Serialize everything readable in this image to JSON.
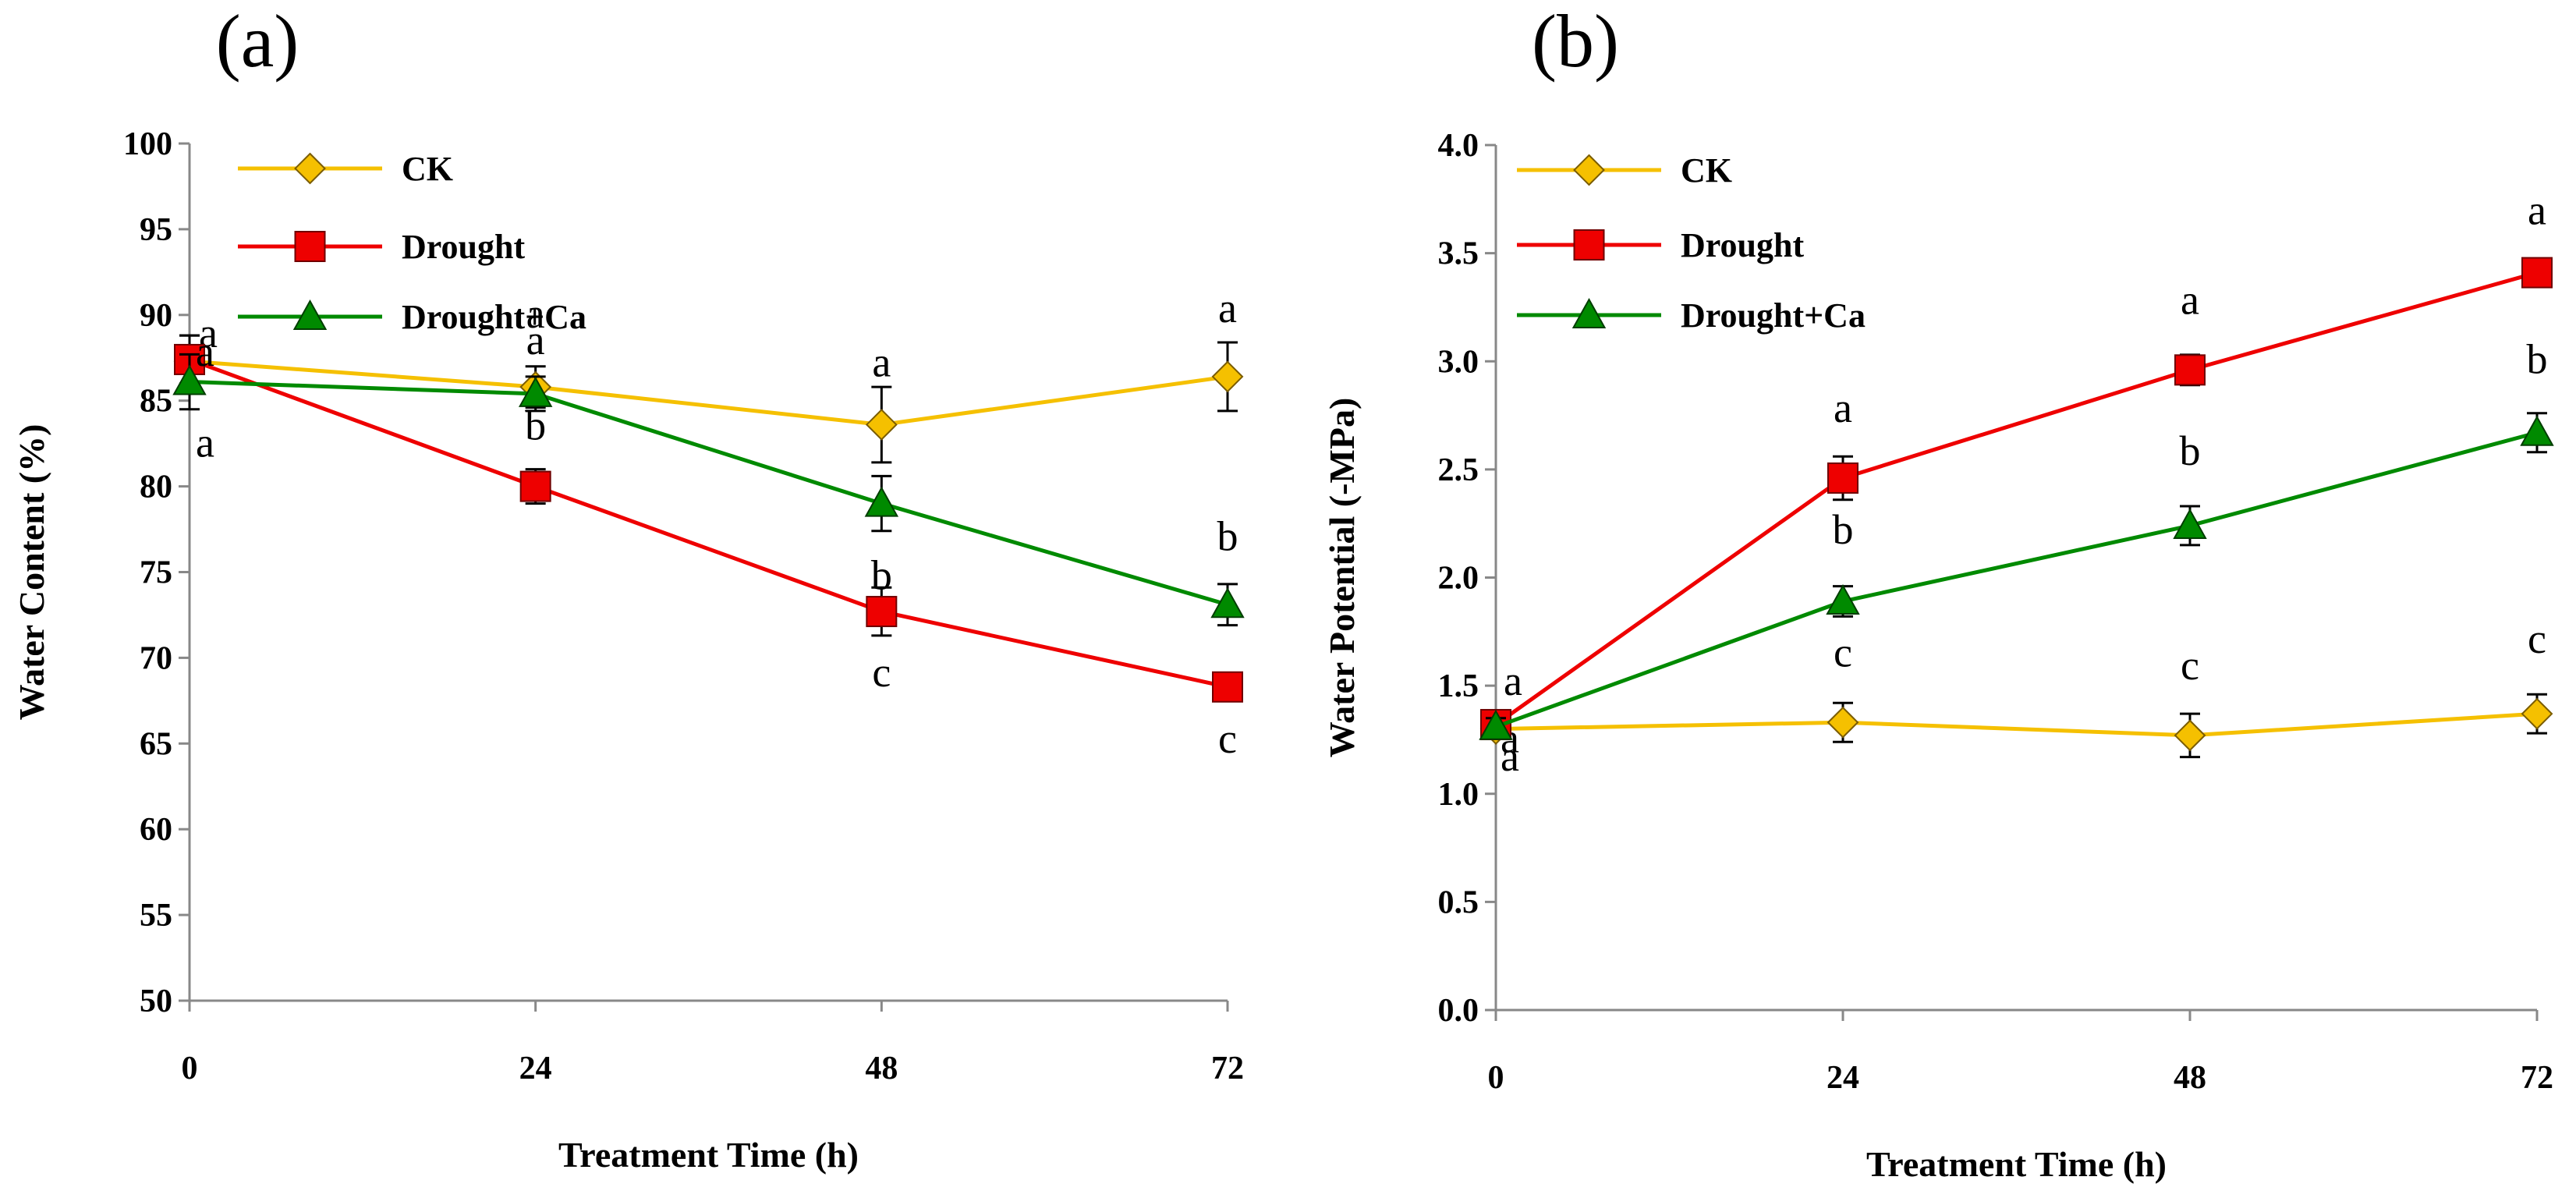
{
  "chart_data": [
    {
      "type": "line",
      "panel_label": "(a)",
      "xlabel": "Treatment Time (h)",
      "ylabel": "Water  Content (%)",
      "x": [
        0,
        24,
        48,
        72
      ],
      "x_tick_labels": [
        "0",
        "24",
        "48",
        "72"
      ],
      "ylim": [
        50,
        100
      ],
      "y_ticks": [
        50,
        55,
        60,
        65,
        70,
        75,
        80,
        85,
        90,
        95,
        100
      ],
      "y_tick_labels": [
        "50",
        "55",
        "60",
        "65",
        "70",
        "75",
        "80",
        "85",
        "90",
        "95",
        "100"
      ],
      "grid": false,
      "legend_position": "top-left",
      "series": [
        {
          "name": "CK",
          "color": "#F5C000",
          "marker": "diamond",
          "values": [
            87.3,
            85.8,
            83.6,
            86.4
          ],
          "errors": [
            1.5,
            1.2,
            2.2,
            2.0
          ],
          "sig": [
            "a",
            "a",
            "a",
            "a"
          ]
        },
        {
          "name": "Drought",
          "color": "#EE0000",
          "marker": "square",
          "values": [
            87.4,
            80.0,
            72.7,
            68.3
          ],
          "errors": [
            1.4,
            1.0,
            1.4,
            0.8
          ],
          "sig": [
            "a",
            "b",
            "c",
            "c"
          ]
        },
        {
          "name": "Drought+Ca",
          "color": "#008A00",
          "marker": "triangle",
          "values": [
            86.1,
            85.4,
            79.0,
            73.1
          ],
          "errors": [
            1.6,
            1.0,
            1.6,
            1.2
          ],
          "sig": [
            "a",
            "a",
            "b",
            "b"
          ]
        }
      ]
    },
    {
      "type": "line",
      "panel_label": "(b)",
      "xlabel": "Treatment Time (h)",
      "ylabel": "Water Potential  (-MPa)",
      "x": [
        0,
        24,
        48,
        72
      ],
      "x_tick_labels": [
        "0",
        "24",
        "48",
        "72"
      ],
      "ylim": [
        0,
        4
      ],
      "y_ticks": [
        0,
        0.5,
        1,
        1.5,
        2,
        2.5,
        3,
        3.5,
        4
      ],
      "y_tick_labels": [
        "0.0",
        "0.5",
        "1.0",
        "1.5",
        "2.0",
        "2.5",
        "3.0",
        "3.5",
        "4.0"
      ],
      "grid": false,
      "legend_position": "top-left",
      "series": [
        {
          "name": "CK",
          "color": "#F5C000",
          "marker": "diamond",
          "values": [
            1.3,
            1.33,
            1.27,
            1.37
          ],
          "errors": [
            0.04,
            0.09,
            0.1,
            0.09
          ],
          "sig": [
            "a",
            "c",
            "c",
            "c"
          ]
        },
        {
          "name": "Drought",
          "color": "#EE0000",
          "marker": "square",
          "values": [
            1.32,
            2.46,
            2.96,
            3.41
          ],
          "errors": [
            0.05,
            0.1,
            0.07,
            0.05
          ],
          "sig": [
            "a",
            "a",
            "a",
            "a"
          ]
        },
        {
          "name": "Drought+Ca",
          "color": "#008A00",
          "marker": "triangle",
          "values": [
            1.31,
            1.89,
            2.24,
            2.67
          ],
          "errors": [
            0.04,
            0.07,
            0.09,
            0.09
          ],
          "sig": [
            "a",
            "b",
            "b",
            "b"
          ]
        }
      ]
    }
  ]
}
